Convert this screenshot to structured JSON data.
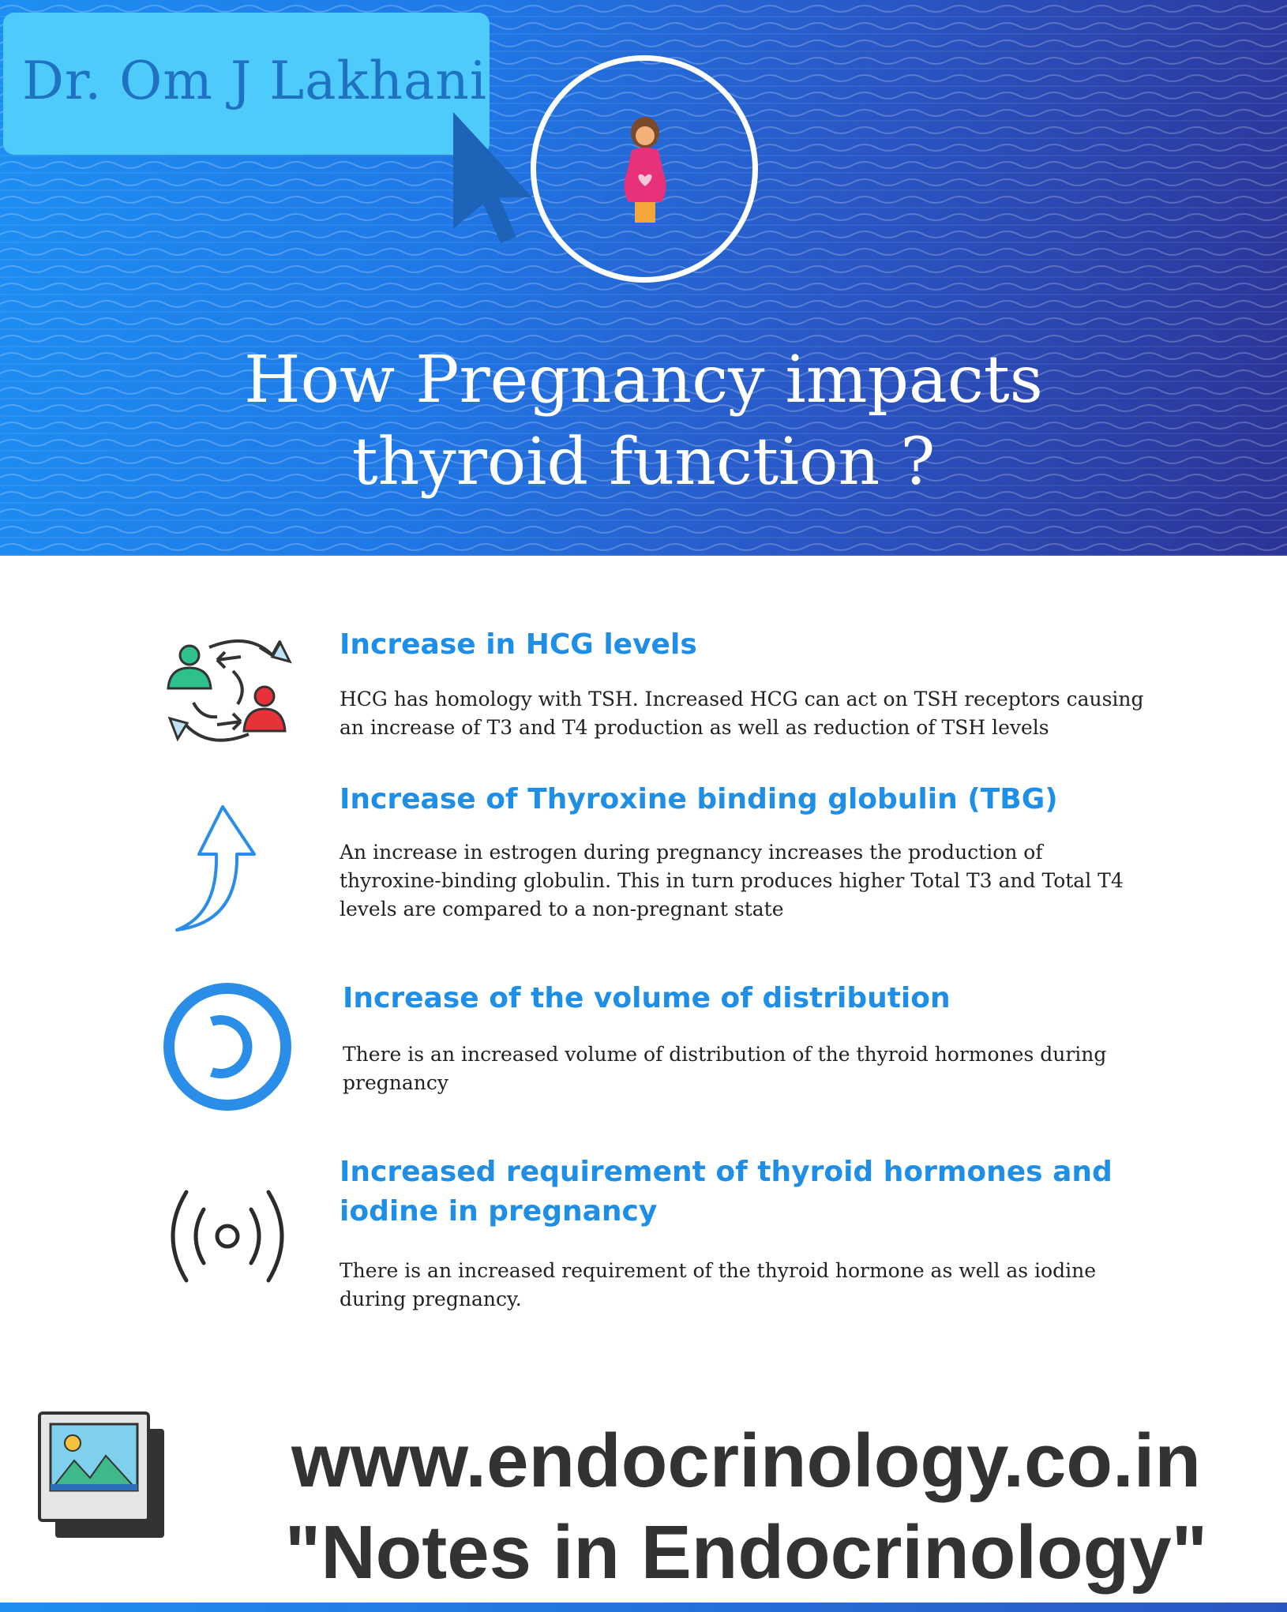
{
  "header": {
    "author": "Dr. Om J Lakhani",
    "title_line1": "How Pregnancy impacts",
    "title_line2": "thyroid function ?",
    "colors": {
      "gradient_start": "#1e8ff2",
      "gradient_end": "#2c3396",
      "name_tag": "#4fcbfb"
    },
    "icons": [
      "cursor-icon",
      "pregnant-woman-icon"
    ]
  },
  "sections": [
    {
      "icon": "exchange-people-icon",
      "heading": "Increase in HCG levels",
      "body": "HCG has homology with TSH. Increased HCG can act on TSH receptors causing an increase of T3 and T4 production as well as reduction of TSH levels"
    },
    {
      "icon": "up-arrow-icon",
      "heading": "Increase of Thyroxine binding globulin (TBG)",
      "body": "An increase in estrogen during pregnancy increases the production of thyroxine-binding globulin. This in turn produces higher Total T3 and Total T4 levels are compared to a non-pregnant state"
    },
    {
      "icon": "copyleft-circle-icon",
      "heading": "Increase of the volume of distribution",
      "body": "There is an increased volume of distribution of the thyroid hormones during pregnancy"
    },
    {
      "icon": "broadcast-signal-icon",
      "heading_line1": "Increased requirement of thyroid hormones and",
      "heading_line2": "iodine in pregnancy",
      "body": "There is an increased requirement of the thyroid hormone as well as iodine during pregnancy."
    }
  ],
  "footer": {
    "icon": "photo-frame-icon",
    "website": "www.endocrinology.co.in",
    "tagline": "\"Notes in Endocrinology\""
  },
  "accent_color": "#1e8ee6"
}
